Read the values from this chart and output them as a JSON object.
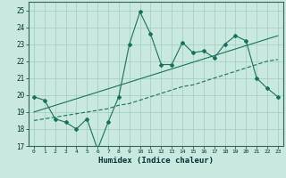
{
  "xlabel": "Humidex (Indice chaleur)",
  "ylabel": "",
  "bg_color": "#c8e8e0",
  "grid_color": "#a0ccbc",
  "line_color": "#1a7060",
  "xlim": [
    -0.5,
    23.5
  ],
  "ylim": [
    17,
    25.5
  ],
  "yticks": [
    17,
    18,
    19,
    20,
    21,
    22,
    23,
    24,
    25
  ],
  "xticks": [
    0,
    1,
    2,
    3,
    4,
    5,
    6,
    7,
    8,
    9,
    10,
    11,
    12,
    13,
    14,
    15,
    16,
    17,
    18,
    19,
    20,
    21,
    22,
    23
  ],
  "line1_x": [
    0,
    1,
    2,
    3,
    4,
    5,
    6,
    7,
    8,
    9,
    10,
    11,
    12,
    13,
    14,
    15,
    16,
    17,
    18,
    19,
    20,
    21,
    22,
    23
  ],
  "line1_y": [
    19.9,
    19.7,
    18.6,
    18.4,
    18.0,
    18.6,
    16.8,
    18.4,
    19.9,
    23.0,
    24.9,
    23.6,
    21.8,
    21.8,
    23.1,
    22.5,
    22.6,
    22.2,
    23.0,
    23.5,
    23.2,
    21.0,
    20.4,
    19.9
  ],
  "line2_x": [
    0,
    1,
    2,
    3,
    4,
    5,
    6,
    7,
    8,
    9,
    10,
    11,
    12,
    13,
    14,
    15,
    16,
    17,
    18,
    19,
    20,
    21,
    22,
    23
  ],
  "line2_y": [
    18.5,
    18.6,
    18.7,
    18.8,
    18.9,
    19.0,
    19.1,
    19.2,
    19.4,
    19.5,
    19.7,
    19.9,
    20.1,
    20.3,
    20.5,
    20.6,
    20.8,
    21.0,
    21.2,
    21.4,
    21.6,
    21.8,
    22.0,
    22.1
  ],
  "line3_x": [
    0,
    23
  ],
  "line3_y": [
    19.0,
    23.5
  ]
}
